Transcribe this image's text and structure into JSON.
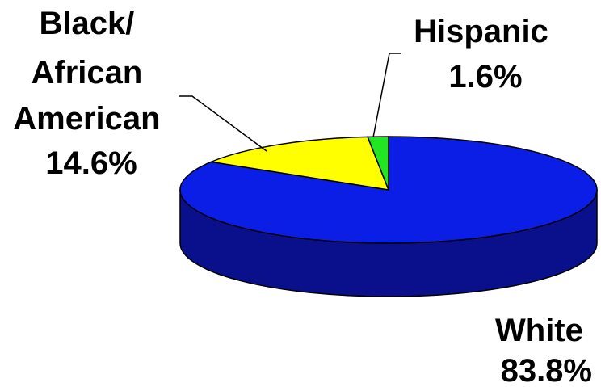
{
  "chart_data": {
    "type": "pie",
    "style": "3d",
    "slices": [
      {
        "label_lines": [
          "White"
        ],
        "value": 83.8,
        "value_label": "83.8%",
        "color": "#0a1ee6",
        "side_color": "#0a0f8c"
      },
      {
        "label_lines": [
          "Black/",
          "African",
          "American"
        ],
        "value": 14.6,
        "value_label": "14.6%",
        "color": "#ffff00",
        "side_color": "#999900"
      },
      {
        "label_lines": [
          "Hispanic"
        ],
        "value": 1.6,
        "value_label": "1.6%",
        "color": "#22e622",
        "side_color": "#118811"
      }
    ]
  }
}
